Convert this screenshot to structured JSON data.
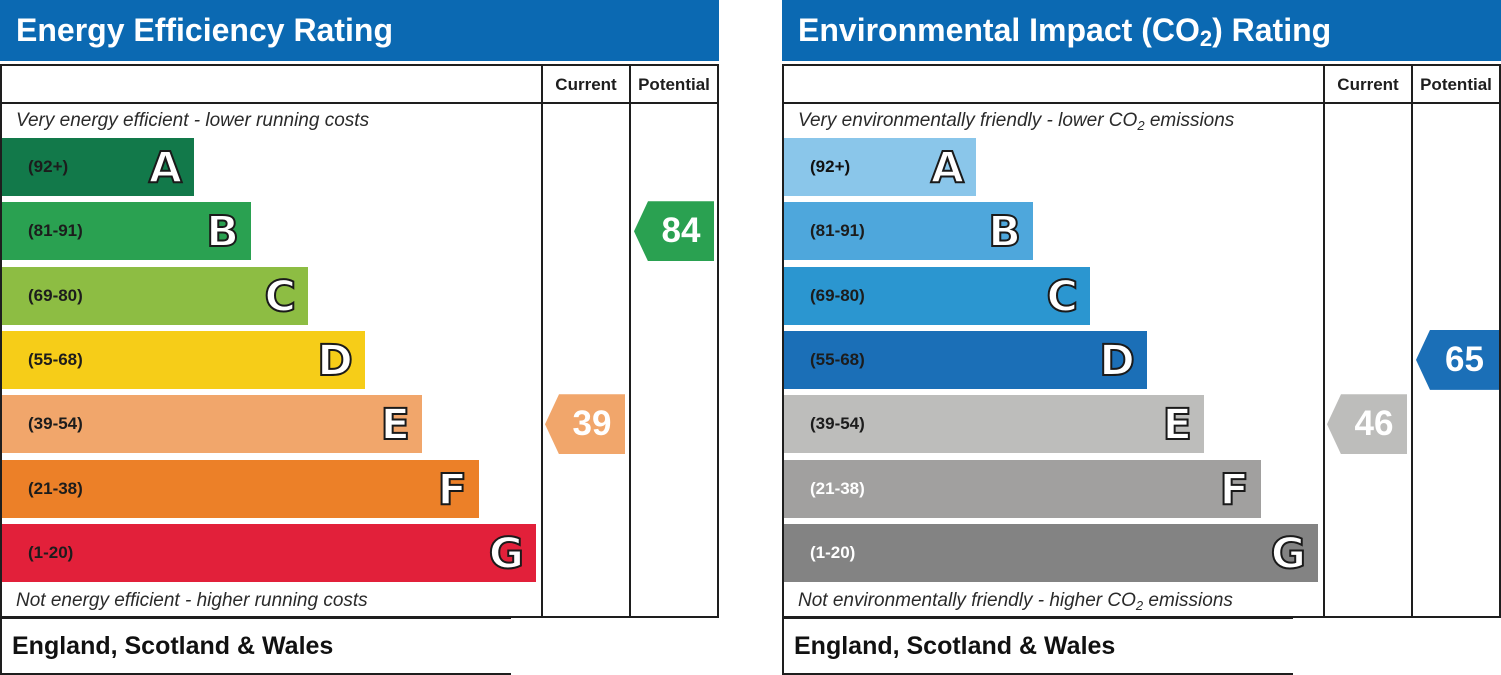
{
  "energy_panel": {
    "title": "Energy Efficiency Rating",
    "col_current": "Current",
    "col_potential": "Potential",
    "top_note": "Very energy efficient - lower running costs",
    "bottom_note": "Not energy efficient - higher running costs",
    "footer": "England, Scotland & Wales",
    "bands": [
      {
        "range": "(92+)",
        "letter": "A",
        "color": "#12794a"
      },
      {
        "range": "(81-91)",
        "letter": "B",
        "color": "#2aa151"
      },
      {
        "range": "(69-80)",
        "letter": "C",
        "color": "#8dbd43"
      },
      {
        "range": "(55-68)",
        "letter": "D",
        "color": "#f6cd18"
      },
      {
        "range": "(39-54)",
        "letter": "E",
        "color": "#f1a66b"
      },
      {
        "range": "(21-38)",
        "letter": "F",
        "color": "#ec8028"
      },
      {
        "range": "(1-20)",
        "letter": "G",
        "color": "#e2203a"
      }
    ],
    "current": {
      "value": "39",
      "band": "E",
      "color": "#f1a66b"
    },
    "potential": {
      "value": "84",
      "band": "B",
      "color": "#2aa151"
    }
  },
  "environment_panel": {
    "title_main": "Environmental Impact (CO",
    "title_sub": "2",
    "title_end": ") Rating",
    "col_current": "Current",
    "col_potential": "Potential",
    "top_note_main": "Very environmentally friendly - lower CO",
    "top_note_sub": "2",
    "top_note_end": " emissions",
    "bottom_note_main": "Not environmentally friendly - higher CO",
    "bottom_note_sub": "2",
    "bottom_note_end": " emissions",
    "footer": "England, Scotland & Wales",
    "bands": [
      {
        "range": "(92+)",
        "letter": "A",
        "color": "#8ac6ea",
        "text_color": "#111111"
      },
      {
        "range": "(81-91)",
        "letter": "B",
        "color": "#4ea7dc",
        "text_color": "#1c1c1c"
      },
      {
        "range": "(69-80)",
        "letter": "C",
        "color": "#2b96d0",
        "text_color": "#1c1c1c"
      },
      {
        "range": "(55-68)",
        "letter": "D",
        "color": "#1b6fb7",
        "text_color": "#1c1c1c"
      },
      {
        "range": "(39-54)",
        "letter": "E",
        "color": "#bdbdbb",
        "text_color": "#1c1c1c"
      },
      {
        "range": "(21-38)",
        "letter": "F",
        "color": "#a1a09f",
        "text_color": "#ffffff"
      },
      {
        "range": "(1-20)",
        "letter": "G",
        "color": "#838383",
        "text_color": "#ffffff"
      }
    ],
    "current": {
      "value": "46",
      "band": "E",
      "color": "#bdbdbb"
    },
    "potential": {
      "value": "65",
      "band": "D",
      "color": "#1b6fb7"
    }
  },
  "chart_data": [
    {
      "type": "bar",
      "title": "Energy Efficiency Rating",
      "categories": [
        "(92+) A",
        "(81-91) B",
        "(69-80) C",
        "(55-68) D",
        "(39-54) E",
        "(21-38) F",
        "(1-20) G"
      ],
      "current": 39,
      "potential": 84
    },
    {
      "type": "bar",
      "title": "Environmental Impact (CO2) Rating",
      "categories": [
        "(92+) A",
        "(81-91) B",
        "(69-80) C",
        "(55-68) D",
        "(39-54) E",
        "(21-38) F",
        "(1-20) G"
      ],
      "current": 46,
      "potential": 65
    }
  ]
}
